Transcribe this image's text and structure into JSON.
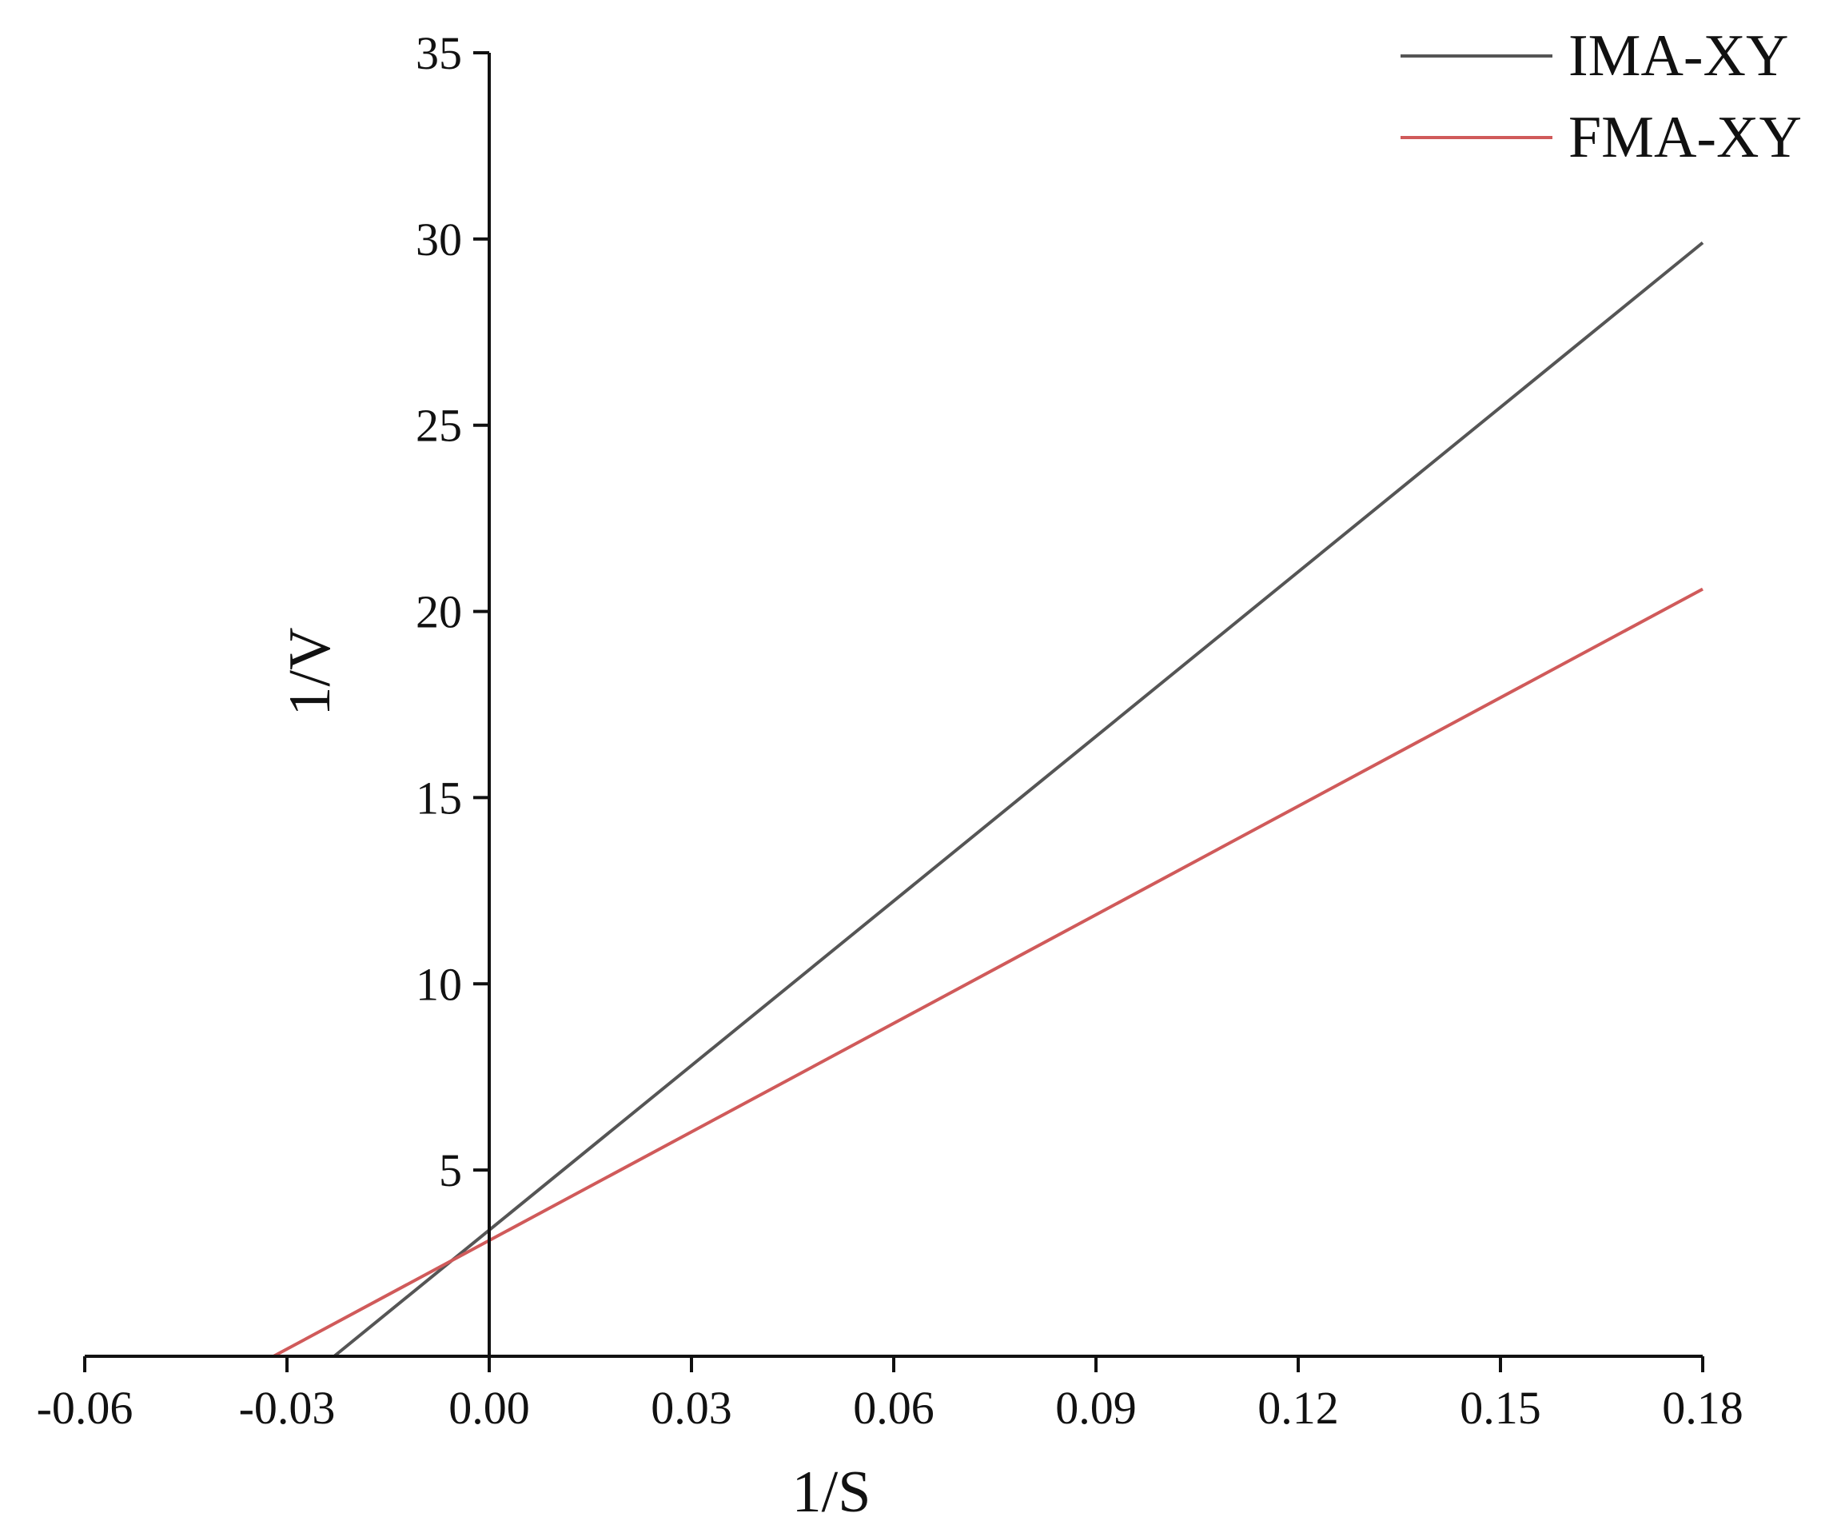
{
  "chart_data": {
    "type": "line",
    "title": "",
    "xlabel": "1/S",
    "ylabel": "1/V",
    "xlim": [
      -0.06,
      0.18
    ],
    "ylim": [
      0,
      35
    ],
    "x_ticks": [
      -0.06,
      -0.03,
      0.0,
      0.03,
      0.06,
      0.09,
      0.12,
      0.15,
      0.18
    ],
    "x_tick_labels": [
      "-0.06",
      "-0.03",
      "0.00",
      "0.03",
      "0.06",
      "0.09",
      "0.12",
      "0.15",
      "0.18"
    ],
    "y_ticks": [
      5,
      10,
      15,
      20,
      25,
      30,
      35
    ],
    "y_tick_labels": [
      "5",
      "10",
      "15",
      "20",
      "25",
      "30",
      "35"
    ],
    "grid": false,
    "legend_position": "top-right",
    "series": [
      {
        "name": "IMA-XY",
        "color": "#555555",
        "x": [
          -0.023,
          0.18
        ],
        "y": [
          0.0,
          29.9
        ]
      },
      {
        "name": "FMA-XY",
        "color": "#d05a5a",
        "x": [
          -0.032,
          0.18
        ],
        "y": [
          0.0,
          20.6
        ]
      }
    ]
  }
}
